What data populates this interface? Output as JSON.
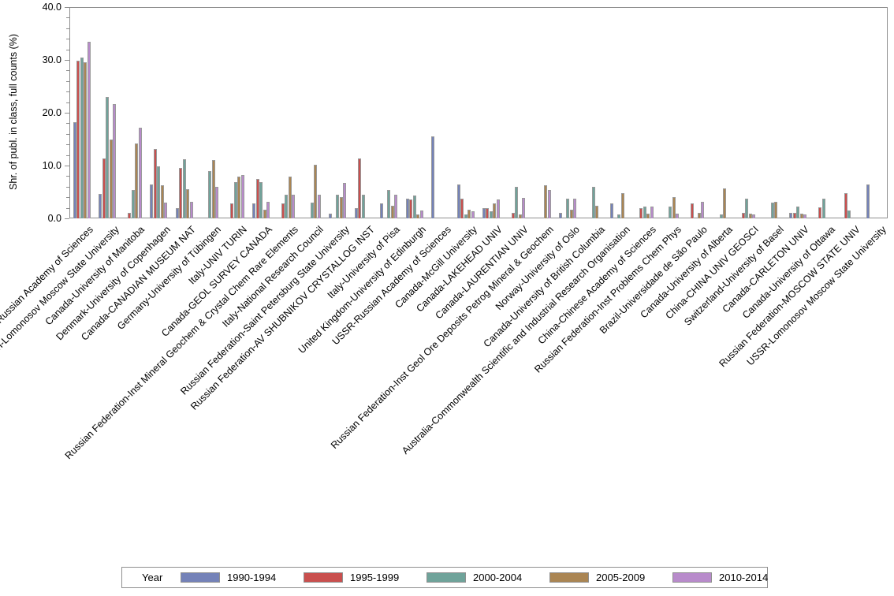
{
  "chart_data": {
    "type": "bar",
    "title": "",
    "xlabel": "",
    "ylabel": "Shr. of publ. in class, full counts (%)",
    "ylim": [
      0,
      40
    ],
    "ytick_interval": 10,
    "yminor_tick_interval": 2,
    "ytick_labels": [
      "0.0",
      "10.0",
      "20.0",
      "30.0",
      "40.0"
    ],
    "grid": false,
    "legend_position": "bottom",
    "legend_title": "Year",
    "categories": [
      "Russian Federation-Russian Academy of Sciences",
      "Russian Federation-Lomonosov Moscow State University",
      "Canada-University of Manitoba",
      "Denmark-University of Copenhagen",
      "Canada-CANADIAN MUSEUM NAT",
      "Germany-University of Tübingen",
      "Italy-UNIV TURIN",
      "Canada-GEOL SURVEY CANADA",
      "Russian Federation-Inst Mineral Geochem & Crystal Chem Rare Elements",
      "Italy-National Research Council",
      "Russian Federation-Saint Petersburg State University",
      "Russian Federation-AV SHUBNIKOV CRYSTALLOG INST",
      "Italy-University of Pisa",
      "United Kingdom-University of Edinburgh",
      "USSR-Russian Academy of Sciences",
      "Canada-McGill University",
      "Canada-LAKEHEAD UNIV",
      "Canada-LAURENTIAN UNIV",
      "Russian Federation-Inst Geol Ore Deposits Petrog Mineral & Geochem",
      "Norway-University of Oslo",
      "Canada-University of British Columbia",
      "Australia-Commonwealth Scientific and Industrial Research Organisation",
      "China-Chinese Academy of Sciences",
      "Russian Federation-Inst Problems Chem Phys",
      "Brazil-Universidade de São Paulo",
      "Canada-University of Alberta",
      "China-CHINA UNIV GEOSCI",
      "Switzerland-University of Basel",
      "Canada-CARLETON UNIV",
      "Canada-University of Ottawa",
      "Russian Federation-MOSCOW STATE UNIV",
      "USSR-Lomonosov Moscow State University"
    ],
    "series": [
      {
        "name": "1990-1994",
        "color": "#7482B8",
        "values": [
          18.2,
          4.6,
          0,
          6.4,
          2.0,
          0,
          0,
          2.9,
          0,
          0,
          0.9,
          1.9,
          2.9,
          3.7,
          15.5,
          6.4,
          2.0,
          0,
          0,
          1.0,
          0,
          2.9,
          0,
          0,
          0,
          0,
          0,
          0,
          1.0,
          0,
          0,
          6.4
        ]
      },
      {
        "name": "1995-1999",
        "color": "#C94F4E",
        "values": [
          29.9,
          11.4,
          1.1,
          13.2,
          9.6,
          0,
          2.9,
          7.4,
          2.9,
          0,
          0,
          11.3,
          0,
          3.6,
          0,
          3.7,
          1.9,
          1.1,
          0,
          0,
          0,
          0,
          1.9,
          0,
          2.9,
          0,
          1.1,
          0,
          1.1,
          2.1,
          4.8,
          0
        ]
      },
      {
        "name": "2000-2004",
        "color": "#6FA39A",
        "values": [
          30.4,
          23.0,
          5.3,
          9.8,
          11.2,
          8.9,
          6.8,
          6.8,
          4.5,
          3.0,
          4.5,
          4.5,
          5.3,
          4.4,
          0,
          0.7,
          1.4,
          6.0,
          0,
          3.7,
          6.0,
          0.8,
          2.3,
          2.3,
          0,
          0.8,
          3.8,
          3.0,
          2.2,
          3.7,
          1.5,
          0
        ]
      },
      {
        "name": "2005-2009",
        "color": "#AA8553",
        "values": [
          29.6,
          14.9,
          14.2,
          6.3,
          5.5,
          11.1,
          7.9,
          1.7,
          7.9,
          10.1,
          4.1,
          0,
          2.4,
          0.7,
          0,
          1.7,
          2.9,
          0.8,
          6.3,
          1.7,
          2.4,
          4.8,
          0.9,
          4.1,
          1.0,
          5.6,
          0.9,
          3.1,
          0.9,
          0,
          0,
          0
        ]
      },
      {
        "name": "2010-2014",
        "color": "#B88BCB",
        "values": [
          33.5,
          21.6,
          17.2,
          3.0,
          3.1,
          6.0,
          8.2,
          3.1,
          4.5,
          4.5,
          6.7,
          0,
          4.5,
          1.5,
          0,
          1.3,
          3.6,
          3.9,
          5.3,
          3.8,
          0,
          0,
          2.3,
          0.9,
          3.1,
          0,
          0.7,
          0,
          0.8,
          0,
          0,
          0
        ]
      }
    ]
  },
  "colors": {
    "frame": "#8f8f8f",
    "bar_border": "#9a9a9a",
    "text": "#000000",
    "background": "#ffffff"
  }
}
